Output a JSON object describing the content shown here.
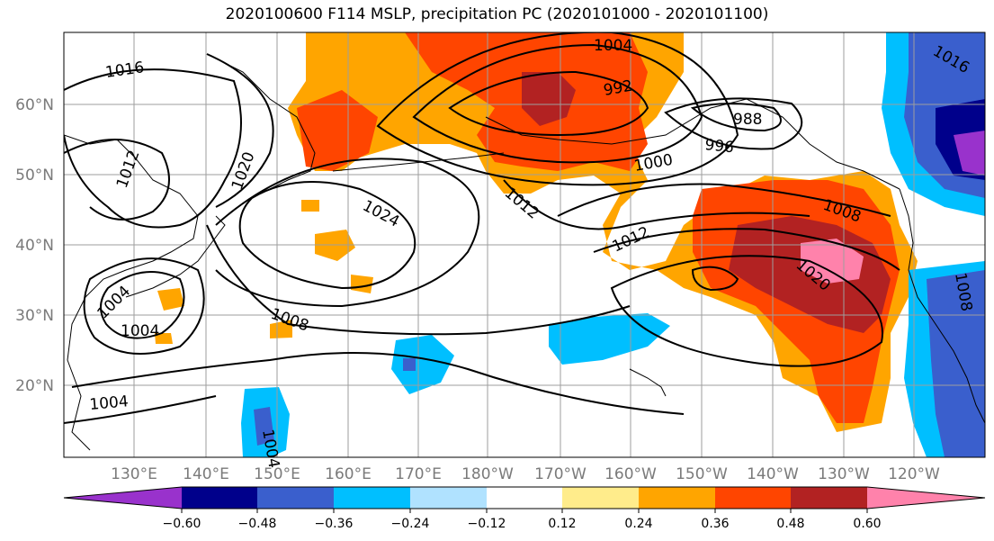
{
  "title": "2020100600 F114 MSLP, precipitation PC (2020101000 - 2020101100)",
  "map": {
    "lat_labels": [
      "60°N",
      "50°N",
      "40°N",
      "30°N",
      "20°N"
    ],
    "lon_labels": [
      "130°E",
      "140°E",
      "150°E",
      "160°E",
      "170°E",
      "180°W",
      "170°W",
      "160°W",
      "150°W",
      "140°W",
      "130°W",
      "120°W"
    ],
    "isobar_labels": [
      "1016",
      "1012",
      "1020",
      "1024",
      "1004",
      "1004",
      "1008",
      "1012",
      "1004",
      "992",
      "988",
      "996",
      "1000",
      "1012",
      "1016",
      "1008",
      "1020",
      "1004",
      "1008",
      "1004"
    ]
  },
  "colorbar": {
    "ticks": [
      "−0.60",
      "−0.48",
      "−0.36",
      "−0.24",
      "−0.12",
      "0.12",
      "0.24",
      "0.36",
      "0.48",
      "0.60"
    ],
    "colors": [
      "#9932cc",
      "#00008b",
      "#3a5fcd",
      "#00bfff",
      "#b0e2ff",
      "#ffffff",
      "#ffec8b",
      "#ffa500",
      "#ff4500",
      "#b22222",
      "#ff82ab"
    ]
  }
}
